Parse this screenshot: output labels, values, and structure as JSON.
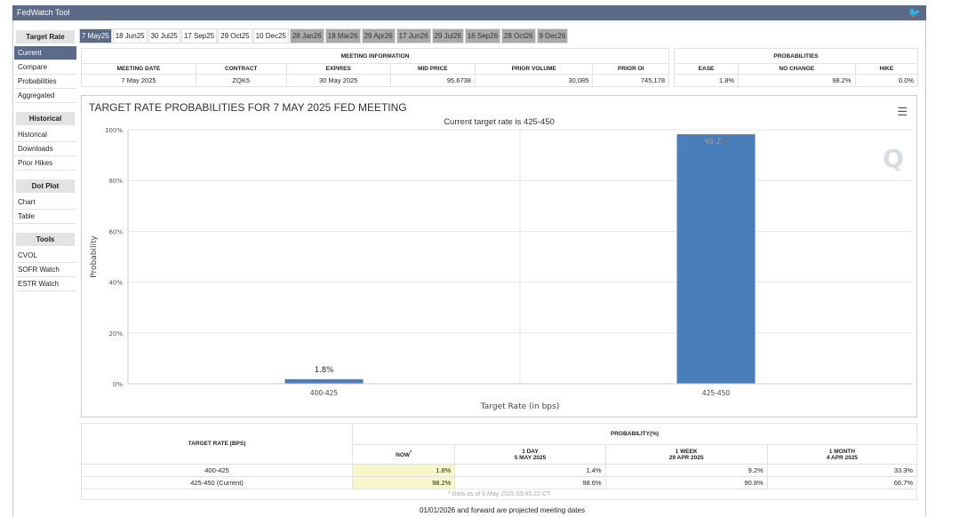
{
  "app": {
    "title": "FedWatch Tool",
    "twitter_icon": "twitter-icon"
  },
  "sidebar": {
    "sections": [
      {
        "header": "Target Rate",
        "items": [
          "Current",
          "Compare",
          "Probabilities",
          "Aggregated"
        ]
      },
      {
        "header": "Historical",
        "items": [
          "Historical",
          "Downloads",
          "Prior Hikes"
        ]
      },
      {
        "header": "Dot Plot",
        "items": [
          "Chart",
          "Table"
        ]
      },
      {
        "header": "Tools",
        "items": [
          "CVOL",
          "SOFR Watch",
          "ESTR Watch"
        ]
      }
    ],
    "active": "Current"
  },
  "tabs": [
    "7 May25",
    "18 Jun25",
    "30 Jul25",
    "17 Sep25",
    "29 Oct25",
    "10 Dec25",
    "28 Jan26",
    "18 Mar26",
    "29 Apr26",
    "17 Jun26",
    "29 Jul26",
    "16 Sep26",
    "28 Oct26",
    "9 Dec26"
  ],
  "meeting_info": {
    "title": "MEETING INFORMATION",
    "headers": [
      "MEETING DATE",
      "CONTRACT",
      "EXPIRES",
      "MID PRICE",
      "PRIOR VOLUME",
      "PRIOR OI"
    ],
    "values": [
      "7 May 2025",
      "ZQK5",
      "30 May 2025",
      "95.6738",
      "30,085",
      "745,178"
    ]
  },
  "probabilities": {
    "title": "PROBABILITIES",
    "headers": [
      "EASE",
      "NO CHANGE",
      "HIKE"
    ],
    "values": [
      "1.8%",
      "98.2%",
      "0.0%"
    ]
  },
  "chart_data": {
    "type": "bar",
    "title": "TARGET RATE PROBABILITIES FOR 7 MAY 2025 FED MEETING",
    "subtitle": "Current target rate is 425-450",
    "xlabel": "Target Rate (in bps)",
    "ylabel": "Probability",
    "categories": [
      "400-425",
      "425-450"
    ],
    "values": [
      1.8,
      98.2
    ],
    "data_labels": [
      "1.8%",
      "98.2%"
    ],
    "ylim": [
      0,
      100
    ],
    "yticks": [
      "0%",
      "20%",
      "40%",
      "60%",
      "80%",
      "100%"
    ],
    "color": "#4a7ebb",
    "grid": true
  },
  "bottom_table": {
    "rate_header": "TARGET RATE (BPS)",
    "prob_header": "PROBABILITY(%)",
    "cols": [
      {
        "l1": "NOW",
        "l2": "*"
      },
      {
        "l1": "1 DAY",
        "l2": "5 MAY 2025"
      },
      {
        "l1": "1 WEEK",
        "l2": "29 APR 2025"
      },
      {
        "l1": "1 MONTH",
        "l2": "4 APR 2025"
      }
    ],
    "rows": [
      {
        "rate": "400-425",
        "vals": [
          "1.8%",
          "1.4%",
          "9.2%",
          "33.3%"
        ]
      },
      {
        "rate": "425-450 (Current)",
        "vals": [
          "98.2%",
          "98.6%",
          "90.8%",
          "66.7%"
        ]
      }
    ],
    "note": "* Data as of 6 May 2025 03:45:22 CT"
  },
  "footer": "01/01/2026 and forward are projected meeting dates"
}
